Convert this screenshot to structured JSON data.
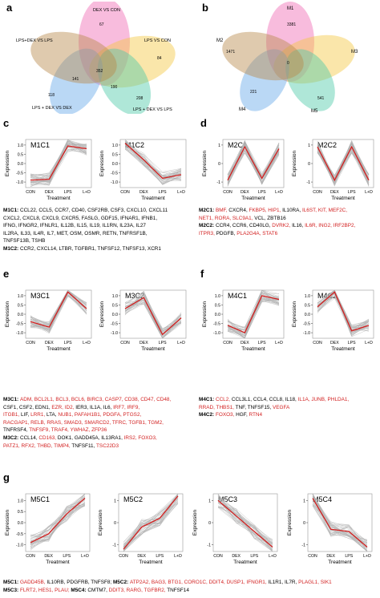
{
  "panels": {
    "a": {
      "letter": "a",
      "labels": [
        "DEX VS CON",
        "LPS VS CON",
        "LPS + DEX VS DEX",
        "LPS + DEX VS LPS",
        "LPS+DEX VS LPS"
      ],
      "counts": [
        "67",
        "84",
        "9",
        "11",
        "352",
        "141",
        "48",
        "26",
        "4",
        "10",
        "190",
        "183",
        "118",
        "208",
        "7",
        "6",
        "37",
        "15",
        "10",
        "16"
      ]
    },
    "b": {
      "letter": "b",
      "labels": [
        "M1",
        "M2",
        "M3",
        "M4",
        "M5"
      ],
      "counts": [
        "3381",
        "1471",
        "221",
        "541",
        "0",
        "4",
        "3",
        "17",
        "0",
        "0",
        "8",
        "2",
        "0",
        "6",
        "2",
        "1"
      ]
    },
    "c": {
      "letter": "c"
    },
    "d": {
      "letter": "d"
    },
    "e": {
      "letter": "e"
    },
    "f": {
      "letter": "f"
    },
    "g": {
      "letter": "g"
    }
  },
  "axes": {
    "xlabel": "Treatment",
    "ylabel": "Expression",
    "xticks": [
      "CON",
      "DEX",
      "LPS",
      "L+D"
    ]
  },
  "chart_data": [
    {
      "type": "line",
      "title": "M1C1",
      "categories": [
        "CON",
        "DEX",
        "LPS",
        "L+D"
      ],
      "values": [
        -0.9,
        -0.85,
        0.95,
        0.8
      ],
      "yticks": [
        "-1.0",
        "-0.5",
        "0.0",
        "0.5",
        "1.0"
      ],
      "ylim": [
        -1.3,
        1.3
      ]
    },
    {
      "type": "line",
      "title": "M1C2",
      "categories": [
        "CON",
        "DEX",
        "LPS",
        "L+D"
      ],
      "values": [
        1.1,
        0.2,
        -0.8,
        -0.6
      ],
      "yticks": [
        "-1.0",
        "-0.5",
        "0.0",
        "0.5",
        "1.0"
      ],
      "ylim": [
        -1.3,
        1.3
      ]
    },
    {
      "type": "line",
      "title": "M2C1",
      "categories": [
        "CON",
        "DEX",
        "LPS",
        "L+D"
      ],
      "values": [
        -0.9,
        0.9,
        -0.8,
        0.8
      ],
      "yticks": [
        "-1",
        "0",
        "1"
      ],
      "ylim": [
        -1.3,
        1.3
      ]
    },
    {
      "type": "line",
      "title": "M2C2",
      "categories": [
        "CON",
        "DEX",
        "LPS",
        "L+D"
      ],
      "values": [
        0.9,
        -0.9,
        0.9,
        -0.9
      ],
      "yticks": [
        "-1",
        "0",
        "1"
      ],
      "ylim": [
        -1.3,
        1.3
      ]
    },
    {
      "type": "line",
      "title": "M3C1",
      "categories": [
        "CON",
        "DEX",
        "LPS",
        "L+D"
      ],
      "values": [
        -0.4,
        -0.7,
        1.2,
        0.3
      ],
      "yticks": [
        "-1.0",
        "-0.5",
        "0.0",
        "0.5",
        "1.0"
      ],
      "ylim": [
        -1.3,
        1.3
      ]
    },
    {
      "type": "line",
      "title": "M3C2",
      "categories": [
        "CON",
        "DEX",
        "LPS",
        "L+D"
      ],
      "values": [
        0.3,
        0.9,
        -1.1,
        -0.2
      ],
      "yticks": [
        "-1.0",
        "-0.5",
        "0.0",
        "0.5",
        "1.0"
      ],
      "ylim": [
        -1.3,
        1.3
      ]
    },
    {
      "type": "line",
      "title": "M4C1",
      "categories": [
        "CON",
        "DEX",
        "LPS",
        "L+D"
      ],
      "values": [
        -0.6,
        -1.0,
        1.0,
        0.8
      ],
      "yticks": [
        "-1.0",
        "-0.5",
        "0.0",
        "0.5",
        "1.0"
      ],
      "ylim": [
        -1.3,
        1.3
      ]
    },
    {
      "type": "line",
      "title": "M4C2",
      "categories": [
        "CON",
        "DEX",
        "LPS",
        "L+D"
      ],
      "values": [
        0.4,
        1.2,
        -0.9,
        -0.6
      ],
      "yticks": [
        "-1.0",
        "-0.5",
        "0.0",
        "0.5",
        "1.0"
      ],
      "ylim": [
        -1.3,
        1.3
      ]
    },
    {
      "type": "line",
      "title": "M5C1",
      "categories": [
        "CON",
        "DEX",
        "LPS",
        "L+D"
      ],
      "values": [
        -0.9,
        -0.5,
        0.4,
        1.1
      ],
      "yticks": [
        "-1.0",
        "-0.5",
        "0.0",
        "0.5",
        "1.0"
      ],
      "ylim": [
        -1.3,
        1.3
      ]
    },
    {
      "type": "line",
      "title": "M5C2",
      "categories": [
        "CON",
        "DEX",
        "LPS",
        "L+D"
      ],
      "values": [
        -1.2,
        -0.2,
        0.2,
        1.2
      ],
      "yticks": [
        "-1",
        "0",
        "1"
      ],
      "ylim": [
        -1.3,
        1.3
      ]
    },
    {
      "type": "line",
      "title": "M5C3",
      "categories": [
        "CON",
        "DEX",
        "LPS",
        "L+D"
      ],
      "values": [
        1.0,
        0.3,
        -0.4,
        -1.1
      ],
      "yticks": [
        "-1",
        "0",
        "1"
      ],
      "ylim": [
        -1.3,
        1.3
      ]
    },
    {
      "type": "line",
      "title": "M5C4",
      "categories": [
        "CON",
        "DEX",
        "LPS",
        "L+D"
      ],
      "values": [
        1.1,
        -0.3,
        -0.4,
        -1.1
      ],
      "yticks": [
        "-1",
        "0",
        "1"
      ],
      "ylim": [
        -1.3,
        1.3
      ]
    }
  ],
  "gene_lists": [
    {
      "id": "m1",
      "lines": [
        [
          {
            "t": "M1C1: ",
            "b": true
          },
          {
            "t": "CCL22, CCL5, CCR7, CD40, CSF2RB, CSF3, CXCL10, CXCL11"
          }
        ],
        [
          {
            "t": "CXCL2, CXCL8, CXCL9, CXCR5, FASLG, GDF15, IFNAR1, IFNB1,"
          }
        ],
        [
          {
            "t": "IFNG, IFNGR2, IFNLR1, IL12B, IL15, IL19, IL1RN, IL23A, IL27"
          }
        ],
        [
          {
            "t": "IL2RA, IL33, IL4R, IL7, MET, OSM, OSMR, RETN, TNFRSF1B,"
          }
        ],
        [
          {
            "t": "TNFSF13B, TSHB"
          }
        ],
        [
          {
            "t": "M1C2: ",
            "b": true
          },
          {
            "t": "CCR2, CXCL14, LTBR, TGFBR1, TNFSF12, TNFSF13, XCR1"
          }
        ]
      ]
    },
    {
      "id": "m2",
      "lines": [
        [
          {
            "t": "M2C1: ",
            "b": true
          },
          {
            "t": "BMF, ",
            "r": true
          },
          {
            "t": "CXCR4, "
          },
          {
            "t": "FKBP5, HIP1, ",
            "r": true
          },
          {
            "t": "IL10RA, "
          },
          {
            "t": "IL6ST, KIT, MEF2C,",
            "r": true
          }
        ],
        [
          {
            "t": "NET1, RORA, SLC9A1, ",
            "r": true
          },
          {
            "t": "VCL, ZBTB16"
          }
        ],
        [
          {
            "t": "M2C2: ",
            "b": true
          },
          {
            "t": "CCR4, CCR6, CD40LG, "
          },
          {
            "t": "DVRK2, ",
            "r": true
          },
          {
            "t": "IL16, "
          },
          {
            "t": "IL6R, ING2, IRF2BP2,",
            "r": true
          }
        ],
        [
          {
            "t": "ITPR3, ",
            "r": true
          },
          {
            "t": "PDGFB, "
          },
          {
            "t": "PLA2G4A, STAT6",
            "r": true
          }
        ]
      ]
    },
    {
      "id": "m3",
      "lines": [
        [
          {
            "t": "M3C1: ",
            "b": true
          },
          {
            "t": "ADM, BCL2L1, BCL3, BCL6, BIRC3, CASP7, CD38, CD47, CD48,",
            "r": true
          }
        ],
        [
          {
            "t": "CSF1, CSF2, EDN1, "
          },
          {
            "t": "EZR, ID2, ",
            "r": true
          },
          {
            "t": "IER3, IL1A, IL6, "
          },
          {
            "t": "IRF7, IRF9,",
            "r": true
          }
        ],
        [
          {
            "t": "ITGB1, ",
            "r": true
          },
          {
            "t": "LIF, "
          },
          {
            "t": "LRR1, ",
            "r": true
          },
          {
            "t": "LTA, "
          },
          {
            "t": "NUB1, PAFAH1B1, PDGFA, PTGS2,",
            "r": true
          }
        ],
        [
          {
            "t": "RACGAP1, RELB, RRAS, SMAD3, SMARCD2, TFRC, TGFB1, TGM2,",
            "r": true
          }
        ],
        [
          {
            "t": "TNFRSF4, "
          },
          {
            "t": "TNFSF9, TRAF4, YWHAZ, ZFP36",
            "r": true
          }
        ],
        [
          {
            "t": "M3C2: ",
            "b": true
          },
          {
            "t": "CCL14, "
          },
          {
            "t": "CD163, ",
            "r": true
          },
          {
            "t": "DOK1, GADD45A, IL13RA1, "
          },
          {
            "t": "IRS2, ",
            "r": true
          },
          {
            "t": "FOXO3,",
            "r": true
          }
        ],
        [
          {
            "t": "PATZ1, RFX2, THBD, TIMP4, ",
            "r": true
          },
          {
            "t": "TNFSF11, "
          },
          {
            "t": "TSC22D3",
            "r": true
          }
        ]
      ]
    },
    {
      "id": "m4",
      "lines": [
        [
          {
            "t": "M4C1: ",
            "b": true
          },
          {
            "t": "CCL2, ",
            "r": true
          },
          {
            "t": "CCL3L1, CCL4, CCL8, IL18, "
          },
          {
            "t": "IL1A, JUNB, PHLDA1,",
            "r": true
          }
        ],
        [
          {
            "t": "RRAD, THBS1, ",
            "r": true
          },
          {
            "t": "TNF, TNFSF15, "
          },
          {
            "t": "VEGFA",
            "r": true
          }
        ],
        [
          {
            "t": "M4C2: ",
            "b": true
          },
          {
            "t": "FOXO3, ",
            "r": true
          },
          {
            "t": "HGF, "
          },
          {
            "t": "RTN4",
            "r": true
          }
        ]
      ]
    },
    {
      "id": "m5",
      "lines": [
        [
          {
            "t": "M5C1: ",
            "b": true
          },
          {
            "t": "GADD45B, ",
            "r": true
          },
          {
            "t": "IL10RB, PDGFRB, TNFSF8; "
          },
          {
            "t": "M5C2: ",
            "b": true
          },
          {
            "t": "ATP2A2, BAG3, BTG1, CORO1C, DDIT4, DUSP1, IFNGR1, ",
            "r": true
          },
          {
            "t": "IL1R1, IL7R, "
          },
          {
            "t": "PLAGL1, SIK1",
            "r": true
          }
        ],
        [
          {
            "t": "M5C3: ",
            "b": true
          },
          {
            "t": "FLRT2, HES1, PLAU; ",
            "r": true
          },
          {
            "t": "M5C4: ",
            "b": true
          },
          {
            "t": "CMTM7, "
          },
          {
            "t": "DDIT3, RARG, TGFBR2, ",
            "r": true
          },
          {
            "t": "TNFSF14"
          }
        ]
      ]
    }
  ],
  "colors": {
    "mean_line": "#d21f1f",
    "trace": "#b0b0b0",
    "highlight": "#d21f1f"
  }
}
